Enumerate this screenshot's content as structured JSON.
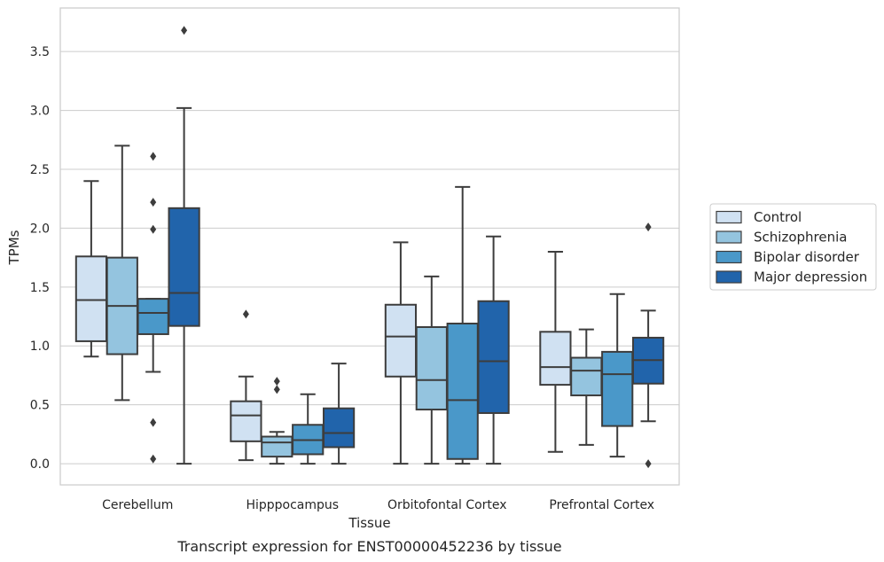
{
  "chart_data": {
    "type": "box",
    "xlabel": "Tissue",
    "ylabel": "TPMs",
    "caption": "Transcript expression for ENST00000452236 by tissue",
    "ylim": [
      -0.18,
      3.87
    ],
    "yticks": [
      "0.0",
      "0.5",
      "1.0",
      "1.5",
      "2.0",
      "2.5",
      "3.0",
      "3.5"
    ],
    "grid": "horizontal",
    "legend_position": "right",
    "categories": [
      "Cerebellum",
      "Hipppocampus",
      "Orbitofontal Cortex",
      "Prefrontal Cortex"
    ],
    "series": [
      {
        "name": "Control",
        "color": "#d0e1f2",
        "boxes": [
          {
            "whislo": 0.91,
            "q1": 1.04,
            "med": 1.39,
            "q3": 1.76,
            "whishi": 2.4,
            "fliers": []
          },
          {
            "whislo": 0.03,
            "q1": 0.19,
            "med": 0.41,
            "q3": 0.53,
            "whishi": 0.74,
            "fliers": [
              1.27
            ]
          },
          {
            "whislo": 0.0,
            "q1": 0.74,
            "med": 1.08,
            "q3": 1.35,
            "whishi": 1.88,
            "fliers": []
          },
          {
            "whislo": 0.1,
            "q1": 0.67,
            "med": 0.82,
            "q3": 1.12,
            "whishi": 1.8,
            "fliers": []
          }
        ]
      },
      {
        "name": "Schizophrenia",
        "color": "#94c4df",
        "boxes": [
          {
            "whislo": 0.54,
            "q1": 0.93,
            "med": 1.34,
            "q3": 1.75,
            "whishi": 2.7,
            "fliers": []
          },
          {
            "whislo": 0.0,
            "q1": 0.06,
            "med": 0.18,
            "q3": 0.23,
            "whishi": 0.27,
            "fliers": [
              0.63,
              0.7
            ]
          },
          {
            "whislo": 0.0,
            "q1": 0.46,
            "med": 0.71,
            "q3": 1.16,
            "whishi": 1.59,
            "fliers": []
          },
          {
            "whislo": 0.16,
            "q1": 0.58,
            "med": 0.79,
            "q3": 0.9,
            "whishi": 1.14,
            "fliers": []
          }
        ]
      },
      {
        "name": "Bipolar disorder",
        "color": "#4a98c9",
        "boxes": [
          {
            "whislo": 0.78,
            "q1": 1.1,
            "med": 1.28,
            "q3": 1.4,
            "whishi": 1.4,
            "fliers": [
              0.04,
              0.35,
              1.99,
              2.22,
              2.61
            ]
          },
          {
            "whislo": 0.0,
            "q1": 0.08,
            "med": 0.2,
            "q3": 0.33,
            "whishi": 0.59,
            "fliers": []
          },
          {
            "whislo": 0.0,
            "q1": 0.04,
            "med": 0.54,
            "q3": 1.19,
            "whishi": 2.35,
            "fliers": []
          },
          {
            "whislo": 0.06,
            "q1": 0.32,
            "med": 0.76,
            "q3": 0.95,
            "whishi": 1.44,
            "fliers": []
          }
        ]
      },
      {
        "name": "Major depression",
        "color": "#2164ab",
        "boxes": [
          {
            "whislo": 0.0,
            "q1": 1.17,
            "med": 1.45,
            "q3": 2.17,
            "whishi": 3.02,
            "fliers": [
              3.68
            ]
          },
          {
            "whislo": 0.0,
            "q1": 0.14,
            "med": 0.26,
            "q3": 0.47,
            "whishi": 0.85,
            "fliers": []
          },
          {
            "whislo": 0.0,
            "q1": 0.43,
            "med": 0.87,
            "q3": 1.38,
            "whishi": 1.93,
            "fliers": []
          },
          {
            "whislo": 0.36,
            "q1": 0.68,
            "med": 0.88,
            "q3": 1.07,
            "whishi": 1.3,
            "fliers": [
              0.0,
              2.01
            ]
          }
        ]
      }
    ]
  }
}
